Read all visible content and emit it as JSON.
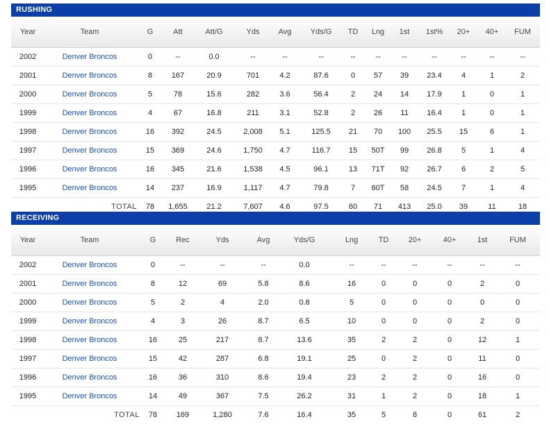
{
  "rushing": {
    "title": "RUSHING",
    "headers": [
      "Year",
      "Team",
      "G",
      "Att",
      "Att/G",
      "Yds",
      "Avg",
      "Yds/G",
      "TD",
      "Lng",
      "1st",
      "1st%",
      "20+",
      "40+",
      "FUM"
    ],
    "rows": [
      [
        "2002",
        "Denver Broncos",
        "0",
        "--",
        "0.0",
        "--",
        "--",
        "--",
        "--",
        "--",
        "--",
        "--",
        "--",
        "--",
        "--"
      ],
      [
        "2001",
        "Denver Broncos",
        "8",
        "167",
        "20.9",
        "701",
        "4.2",
        "87.6",
        "0",
        "57",
        "39",
        "23.4",
        "4",
        "1",
        "2"
      ],
      [
        "2000",
        "Denver Broncos",
        "5",
        "78",
        "15.6",
        "282",
        "3.6",
        "56.4",
        "2",
        "24",
        "14",
        "17.9",
        "1",
        "0",
        "1"
      ],
      [
        "1999",
        "Denver Broncos",
        "4",
        "67",
        "16.8",
        "211",
        "3.1",
        "52.8",
        "2",
        "26",
        "11",
        "16.4",
        "1",
        "0",
        "1"
      ],
      [
        "1998",
        "Denver Broncos",
        "16",
        "392",
        "24.5",
        "2,008",
        "5.1",
        "125.5",
        "21",
        "70",
        "100",
        "25.5",
        "15",
        "6",
        "1"
      ],
      [
        "1997",
        "Denver Broncos",
        "15",
        "369",
        "24.6",
        "1,750",
        "4.7",
        "116.7",
        "15",
        "50T",
        "99",
        "26.8",
        "5",
        "1",
        "4"
      ],
      [
        "1996",
        "Denver Broncos",
        "16",
        "345",
        "21.6",
        "1,538",
        "4.5",
        "96.1",
        "13",
        "71T",
        "92",
        "26.7",
        "6",
        "2",
        "5"
      ],
      [
        "1995",
        "Denver Broncos",
        "14",
        "237",
        "16.9",
        "1,117",
        "4.7",
        "79.8",
        "7",
        "60T",
        "58",
        "24.5",
        "7",
        "1",
        "4"
      ]
    ],
    "total_label": "TOTAL",
    "totals": [
      "78",
      "1,655",
      "21.2",
      "7,607",
      "4.6",
      "97.5",
      "60",
      "71",
      "413",
      "25.0",
      "39",
      "11",
      "18"
    ]
  },
  "receiving": {
    "title": "RECEIVING",
    "headers": [
      "Year",
      "Team",
      "G",
      "Rec",
      "Yds",
      "Avg",
      "Yds/G",
      "Lng",
      "TD",
      "20+",
      "40+",
      "1st",
      "FUM"
    ],
    "rows": [
      [
        "2002",
        "Denver Broncos",
        "0",
        "--",
        "--",
        "--",
        "0.0",
        "--",
        "--",
        "--",
        "--",
        "--",
        "--"
      ],
      [
        "2001",
        "Denver Broncos",
        "8",
        "12",
        "69",
        "5.8",
        "8.6",
        "16",
        "0",
        "0",
        "0",
        "2",
        "0"
      ],
      [
        "2000",
        "Denver Broncos",
        "5",
        "2",
        "4",
        "2.0",
        "0.8",
        "5",
        "0",
        "0",
        "0",
        "0",
        "0"
      ],
      [
        "1999",
        "Denver Broncos",
        "4",
        "3",
        "26",
        "8.7",
        "6.5",
        "10",
        "0",
        "0",
        "0",
        "2",
        "0"
      ],
      [
        "1998",
        "Denver Broncos",
        "16",
        "25",
        "217",
        "8.7",
        "13.6",
        "35",
        "2",
        "2",
        "0",
        "12",
        "1"
      ],
      [
        "1997",
        "Denver Broncos",
        "15",
        "42",
        "287",
        "6.8",
        "19.1",
        "25",
        "0",
        "2",
        "0",
        "11",
        "0"
      ],
      [
        "1996",
        "Denver Broncos",
        "16",
        "36",
        "310",
        "8.6",
        "19.4",
        "23",
        "2",
        "2",
        "0",
        "16",
        "0"
      ],
      [
        "1995",
        "Denver Broncos",
        "14",
        "49",
        "367",
        "7.5",
        "26.2",
        "31",
        "1",
        "2",
        "0",
        "18",
        "1"
      ]
    ],
    "total_label": "TOTAL",
    "totals": [
      "78",
      "169",
      "1,280",
      "7.6",
      "16.4",
      "35",
      "5",
      "8",
      "0",
      "61",
      "2"
    ]
  }
}
